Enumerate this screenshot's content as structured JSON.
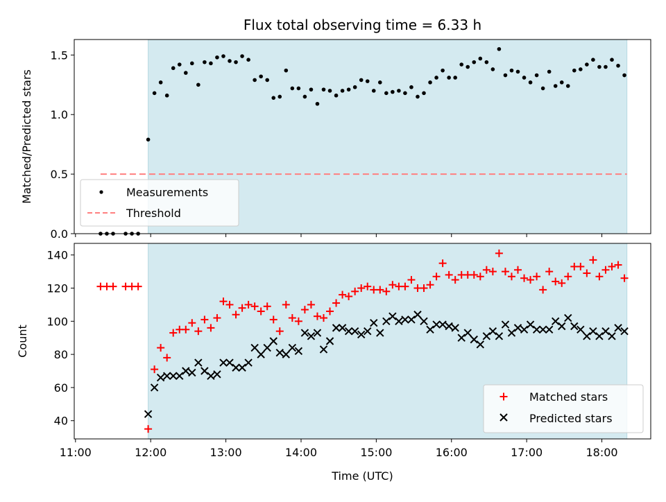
{
  "chart_data": [
    {
      "type": "scatter",
      "title": "Flux total observing time = 6.33 h",
      "ylabel": "Matched/Predicted stars",
      "xlabel": "",
      "ylim": [
        0,
        1.63
      ],
      "yticks": [
        0.0,
        0.5,
        1.0,
        1.5
      ],
      "ytick_labels": [
        "0.0",
        "0.5",
        "1.0",
        "1.5"
      ],
      "grid": false,
      "legend_position": "lower-left",
      "shaded_interval": {
        "start": "11:58",
        "end": "18:20",
        "color": "#d4eaf0"
      },
      "series": [
        {
          "name": "Measurements",
          "marker": "dot",
          "color": "#000000",
          "x": [
            "11:20",
            "11:25",
            "11:30",
            "11:40",
            "11:45",
            "11:50",
            "11:58",
            "12:03",
            "12:08",
            "12:13",
            "12:18",
            "12:23",
            "12:28",
            "12:33",
            "12:38",
            "12:43",
            "12:48",
            "12:53",
            "12:58",
            "13:03",
            "13:08",
            "13:13",
            "13:18",
            "13:23",
            "13:28",
            "13:33",
            "13:38",
            "13:43",
            "13:48",
            "13:53",
            "13:58",
            "14:03",
            "14:08",
            "14:13",
            "14:18",
            "14:23",
            "14:28",
            "14:33",
            "14:38",
            "14:43",
            "14:48",
            "14:53",
            "14:58",
            "15:03",
            "15:08",
            "15:13",
            "15:18",
            "15:23",
            "15:28",
            "15:33",
            "15:38",
            "15:43",
            "15:48",
            "15:53",
            "15:58",
            "16:03",
            "16:08",
            "16:13",
            "16:18",
            "16:23",
            "16:28",
            "16:33",
            "16:38",
            "16:43",
            "16:48",
            "16:53",
            "16:58",
            "17:03",
            "17:08",
            "17:13",
            "17:18",
            "17:23",
            "17:28",
            "17:33",
            "17:38",
            "17:43",
            "17:48",
            "17:53",
            "17:58",
            "18:03",
            "18:08",
            "18:13",
            "18:18"
          ],
          "y": [
            0,
            0,
            0,
            0,
            0,
            0,
            0.79,
            1.18,
            1.27,
            1.16,
            1.39,
            1.42,
            1.35,
            1.43,
            1.25,
            1.44,
            1.43,
            1.48,
            1.49,
            1.45,
            1.44,
            1.49,
            1.46,
            1.29,
            1.32,
            1.29,
            1.14,
            1.15,
            1.37,
            1.22,
            1.22,
            1.15,
            1.21,
            1.09,
            1.21,
            1.2,
            1.16,
            1.2,
            1.21,
            1.23,
            1.29,
            1.28,
            1.2,
            1.27,
            1.18,
            1.19,
            1.2,
            1.18,
            1.23,
            1.15,
            1.18,
            1.27,
            1.31,
            1.37,
            1.31,
            1.31,
            1.42,
            1.4,
            1.44,
            1.47,
            1.44,
            1.38,
            1.55,
            1.33,
            1.37,
            1.36,
            1.31,
            1.27,
            1.33,
            1.22,
            1.36,
            1.24,
            1.27,
            1.24,
            1.37,
            1.38,
            1.42,
            1.46,
            1.4,
            1.4,
            1.46,
            1.41,
            1.33
          ]
        },
        {
          "name": "Threshold",
          "marker": "dashed-line",
          "color": "#ff7f7f",
          "x": [
            "11:20",
            "18:20"
          ],
          "y": [
            0.5,
            0.5
          ]
        }
      ]
    },
    {
      "type": "scatter",
      "title": "",
      "ylabel": "Count",
      "xlabel": "Time (UTC)",
      "ylim": [
        29,
        147
      ],
      "yticks": [
        40,
        60,
        80,
        100,
        120,
        140
      ],
      "ytick_labels": [
        "40",
        "60",
        "80",
        "100",
        "120",
        "140"
      ],
      "xlim": [
        "10:59",
        "18:39"
      ],
      "xticks": [
        "11:00",
        "12:00",
        "13:00",
        "14:00",
        "15:00",
        "16:00",
        "17:00",
        "18:00"
      ],
      "xtick_labels": [
        "11:00",
        "12:00",
        "13:00",
        "14:00",
        "15:00",
        "16:00",
        "17:00",
        "18:00"
      ],
      "grid": false,
      "legend_position": "lower-right",
      "shaded_interval": {
        "start": "11:58",
        "end": "18:20",
        "color": "#d4eaf0"
      },
      "series": [
        {
          "name": "Matched stars",
          "marker": "plus",
          "color": "#ff0000",
          "x": [
            "11:20",
            "11:25",
            "11:30",
            "11:40",
            "11:45",
            "11:50",
            "11:58",
            "12:03",
            "12:08",
            "12:13",
            "12:18",
            "12:23",
            "12:28",
            "12:33",
            "12:38",
            "12:43",
            "12:48",
            "12:53",
            "12:58",
            "13:03",
            "13:08",
            "13:13",
            "13:18",
            "13:23",
            "13:28",
            "13:33",
            "13:38",
            "13:43",
            "13:48",
            "13:53",
            "13:58",
            "14:03",
            "14:08",
            "14:13",
            "14:18",
            "14:23",
            "14:28",
            "14:33",
            "14:38",
            "14:43",
            "14:48",
            "14:53",
            "14:58",
            "15:03",
            "15:08",
            "15:13",
            "15:18",
            "15:23",
            "15:28",
            "15:33",
            "15:38",
            "15:43",
            "15:48",
            "15:53",
            "15:58",
            "16:03",
            "16:08",
            "16:13",
            "16:18",
            "16:23",
            "16:28",
            "16:33",
            "16:38",
            "16:43",
            "16:48",
            "16:53",
            "16:58",
            "17:03",
            "17:08",
            "17:13",
            "17:18",
            "17:23",
            "17:28",
            "17:33",
            "17:38",
            "17:43",
            "17:48",
            "17:53",
            "17:58",
            "18:03",
            "18:08",
            "18:13",
            "18:18"
          ],
          "y": [
            121,
            121,
            121,
            121,
            121,
            121,
            35,
            71,
            84,
            78,
            93,
            95,
            95,
            99,
            94,
            101,
            96,
            102,
            112,
            110,
            104,
            108,
            110,
            109,
            106,
            109,
            101,
            94,
            110,
            102,
            100,
            107,
            110,
            103,
            102,
            106,
            111,
            116,
            115,
            118,
            120,
            121,
            119,
            119,
            118,
            122,
            121,
            121,
            125,
            120,
            120,
            122,
            127,
            135,
            128,
            125,
            128,
            128,
            128,
            127,
            131,
            130,
            141,
            130,
            127,
            131,
            126,
            125,
            127,
            119,
            130,
            124,
            123,
            127,
            133,
            133,
            129,
            137,
            127,
            131,
            133,
            134,
            126
          ]
        },
        {
          "name": "Predicted stars",
          "marker": "x",
          "color": "#000000",
          "x": [
            "11:58",
            "12:03",
            "12:08",
            "12:13",
            "12:18",
            "12:23",
            "12:28",
            "12:33",
            "12:38",
            "12:43",
            "12:48",
            "12:53",
            "12:58",
            "13:03",
            "13:08",
            "13:13",
            "13:18",
            "13:23",
            "13:28",
            "13:33",
            "13:38",
            "13:43",
            "13:48",
            "13:53",
            "13:58",
            "14:03",
            "14:08",
            "14:13",
            "14:18",
            "14:23",
            "14:28",
            "14:33",
            "14:38",
            "14:43",
            "14:48",
            "14:53",
            "14:58",
            "15:03",
            "15:08",
            "15:13",
            "15:18",
            "15:23",
            "15:28",
            "15:33",
            "15:38",
            "15:43",
            "15:48",
            "15:53",
            "15:58",
            "16:03",
            "16:08",
            "16:13",
            "16:18",
            "16:23",
            "16:28",
            "16:33",
            "16:38",
            "16:43",
            "16:48",
            "16:53",
            "16:58",
            "17:03",
            "17:08",
            "17:13",
            "17:18",
            "17:23",
            "17:28",
            "17:33",
            "17:38",
            "17:43",
            "17:48",
            "17:53",
            "17:58",
            "18:03",
            "18:08",
            "18:13",
            "18:18"
          ],
          "y": [
            44,
            60,
            66,
            67,
            67,
            67,
            70,
            69,
            75,
            70,
            67,
            68,
            75,
            75,
            72,
            72,
            75,
            84,
            80,
            84,
            88,
            81,
            80,
            84,
            82,
            93,
            91,
            93,
            83,
            88,
            96,
            96,
            94,
            94,
            92,
            94,
            99,
            93,
            100,
            103,
            100,
            101,
            101,
            104,
            100,
            95,
            98,
            98,
            97,
            96,
            90,
            93,
            89,
            86,
            91,
            94,
            91,
            98,
            93,
            96,
            95,
            98,
            95,
            95,
            95,
            100,
            97,
            102,
            97,
            95,
            91,
            94,
            91,
            94,
            91,
            96,
            94
          ]
        }
      ]
    }
  ]
}
